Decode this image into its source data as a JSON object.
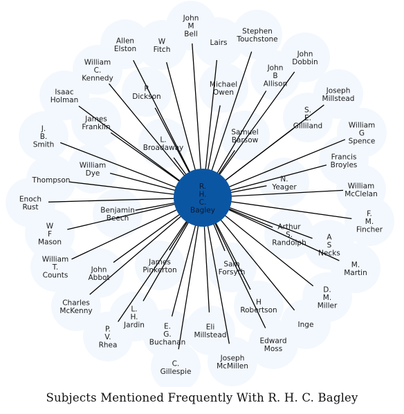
{
  "title": "Subjects Mentioned Frequently With R. H. C. Bagley",
  "center": {
    "lines": [
      "R.",
      "H.",
      "C.",
      "Bagley"
    ]
  },
  "nodes": [
    {
      "id": "john-m-bell",
      "lines": [
        "John",
        "M",
        "Bell"
      ]
    },
    {
      "id": "stephen-touchstone",
      "lines": [
        "Stephen",
        "Touchstone"
      ]
    },
    {
      "id": "lairs",
      "lines": [
        "Lairs"
      ]
    },
    {
      "id": "w-fitch",
      "lines": [
        "W",
        "Fitch"
      ]
    },
    {
      "id": "allen-elston",
      "lines": [
        "Allen",
        "Elston"
      ]
    },
    {
      "id": "john-dobbin",
      "lines": [
        "John",
        "Dobbin"
      ]
    },
    {
      "id": "john-b-allison",
      "lines": [
        "John",
        "B",
        "Allison"
      ]
    },
    {
      "id": "william-c-kennedy",
      "lines": [
        "William",
        "C.",
        "Kennedy"
      ]
    },
    {
      "id": "michael-owen",
      "lines": [
        "Michael",
        "Owen"
      ]
    },
    {
      "id": "r-dickson",
      "lines": [
        "R",
        "Dickson"
      ]
    },
    {
      "id": "isaac-holman",
      "lines": [
        "Isaac",
        "Holman"
      ]
    },
    {
      "id": "joseph-millstead",
      "lines": [
        "Joseph",
        "Millstead"
      ]
    },
    {
      "id": "s-e-gilliland",
      "lines": [
        "S.",
        "E.",
        "Gilliland"
      ]
    },
    {
      "id": "james-franklin",
      "lines": [
        "James",
        "Franklin"
      ]
    },
    {
      "id": "william-g-spence",
      "lines": [
        "William",
        "G",
        "Spence"
      ]
    },
    {
      "id": "samuel-barsow",
      "lines": [
        "Samuel",
        "Barsow"
      ]
    },
    {
      "id": "j-b-smith",
      "lines": [
        "J.",
        "B.",
        "Smith"
      ]
    },
    {
      "id": "l-broadaway",
      "lines": [
        "L.",
        "Broadaway"
      ]
    },
    {
      "id": "francis-broyles",
      "lines": [
        "Francis",
        "Broyles"
      ]
    },
    {
      "id": "william-dye",
      "lines": [
        "William",
        "Dye"
      ]
    },
    {
      "id": "thompson",
      "lines": [
        "Thompson"
      ]
    },
    {
      "id": "n-yeager",
      "lines": [
        "N.",
        "Yeager"
      ]
    },
    {
      "id": "william-mcclelan",
      "lines": [
        "William",
        "McClelan"
      ]
    },
    {
      "id": "enoch-rust",
      "lines": [
        "Enoch",
        "Rust"
      ]
    },
    {
      "id": "benjamin-beech",
      "lines": [
        "Benjamin",
        "Beech"
      ]
    },
    {
      "id": "f-m-fincher",
      "lines": [
        "F.",
        "M.",
        "Fincher"
      ]
    },
    {
      "id": "w-f-mason",
      "lines": [
        "W",
        "F",
        "Mason"
      ]
    },
    {
      "id": "arthur-s-randolph",
      "lines": [
        "Arthur",
        "S.",
        "Randolph"
      ]
    },
    {
      "id": "a-s-necks",
      "lines": [
        "A",
        "S",
        "Necks"
      ]
    },
    {
      "id": "william-t-counts",
      "lines": [
        "William",
        "T.",
        "Counts"
      ]
    },
    {
      "id": "james-pinkerton",
      "lines": [
        "James",
        "Pinkerton"
      ]
    },
    {
      "id": "sam-forsyth",
      "lines": [
        "Sam",
        "Forsyth"
      ]
    },
    {
      "id": "m-martin",
      "lines": [
        "M.",
        "Martin"
      ]
    },
    {
      "id": "john-abbot",
      "lines": [
        "John",
        "Abbot"
      ]
    },
    {
      "id": "d-m-miller",
      "lines": [
        "D.",
        "M.",
        "Miller"
      ]
    },
    {
      "id": "charles-mckenny",
      "lines": [
        "Charles",
        "McKenny"
      ]
    },
    {
      "id": "h-robertson",
      "lines": [
        "H",
        "Robertson"
      ]
    },
    {
      "id": "l-h-jardin",
      "lines": [
        "L.",
        "H.",
        "Jardin"
      ]
    },
    {
      "id": "inge",
      "lines": [
        "Inge"
      ]
    },
    {
      "id": "p-v-rhea",
      "lines": [
        "P.",
        "V.",
        "Rhea"
      ]
    },
    {
      "id": "e-g-buchanan",
      "lines": [
        "E.",
        "G.",
        "Buchanan"
      ]
    },
    {
      "id": "eli-millstead",
      "lines": [
        "Eli",
        "Millstead"
      ]
    },
    {
      "id": "edward-moss",
      "lines": [
        "Edward",
        "Moss"
      ]
    },
    {
      "id": "joseph-mcmillen",
      "lines": [
        "Joseph",
        "McMillen"
      ]
    },
    {
      "id": "c-gillespie",
      "lines": [
        "C.",
        "Gillespie"
      ]
    }
  ]
}
